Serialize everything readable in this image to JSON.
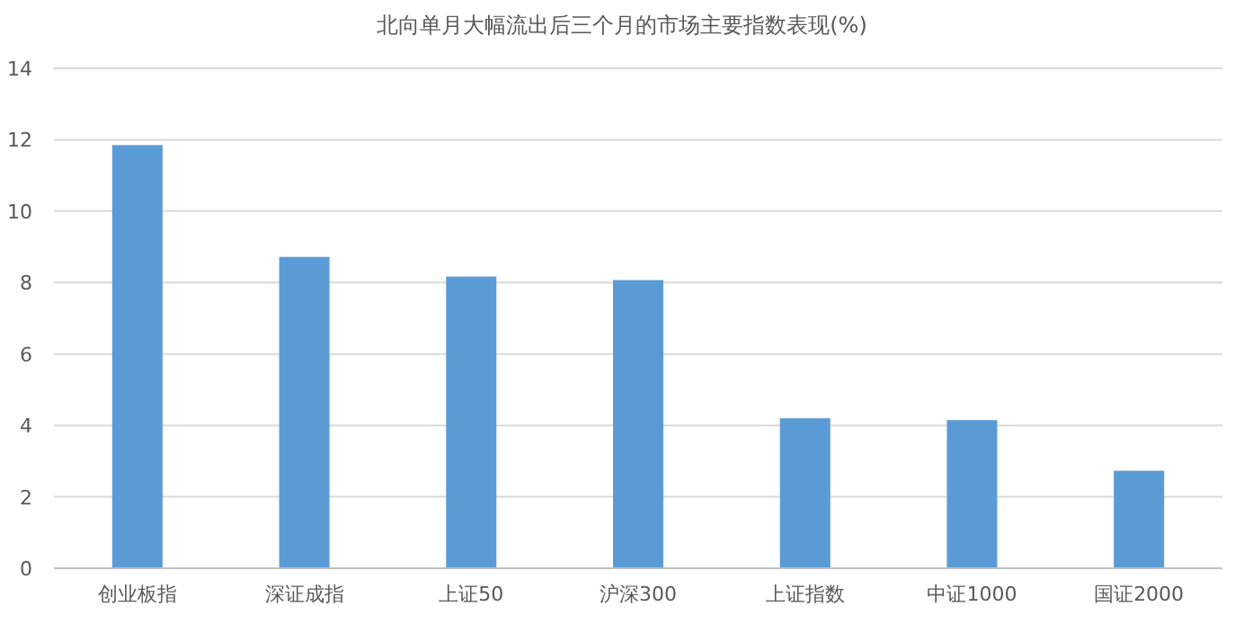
{
  "chart_data": {
    "type": "bar",
    "title": "北向单月大幅流出后三个月的市场主要指数表现(%)",
    "categories": [
      "创业板指",
      "深证成指",
      "上证50",
      "沪深300",
      "上证指数",
      "中证1000",
      "国证2000"
    ],
    "values": [
      11.85,
      8.72,
      8.17,
      8.07,
      4.2,
      4.15,
      2.73
    ],
    "color": "#5b9bd5",
    "ylim": [
      0,
      14
    ],
    "yticks": [
      0,
      2,
      4,
      6,
      8,
      10,
      12,
      14
    ],
    "grid": "y"
  }
}
